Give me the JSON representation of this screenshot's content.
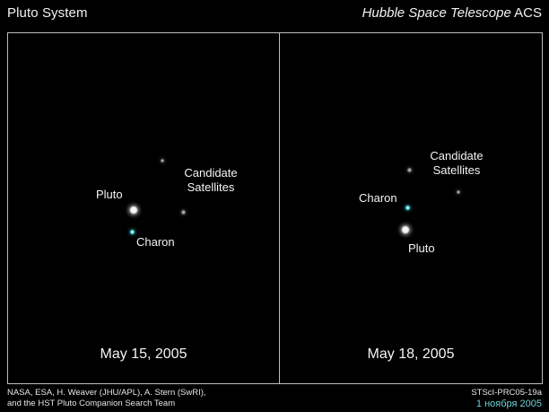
{
  "header": {
    "title": "Pluto System",
    "instrument_italic": "Hubble Space Telescope",
    "instrument_suffix": " ACS"
  },
  "panels": [
    {
      "date": "May 15, 2005",
      "labels": {
        "pluto": "Pluto",
        "charon": "Charon",
        "satellites_line1": "Candidate",
        "satellites_line2": "Satellites"
      }
    },
    {
      "date": "May 18, 2005",
      "labels": {
        "pluto": "Pluto",
        "charon": "Charon",
        "satellites_line1": "Candidate",
        "satellites_line2": "Satellites"
      }
    }
  ],
  "credits": {
    "left_line1": "NASA, ESA, H. Weaver (JHU/APL), A. Stern (SwRI),",
    "left_line2": "and the HST Pluto Companion Search Team",
    "release_id": "STScI-PRC05-19a",
    "caption_ru": "1 ноября 2005"
  },
  "colors": {
    "background": "#000000",
    "border": "#bdbdbd",
    "text": "#f4f4f4",
    "charon": "#57e3ee",
    "caption_ru": "#6fd1d6"
  }
}
